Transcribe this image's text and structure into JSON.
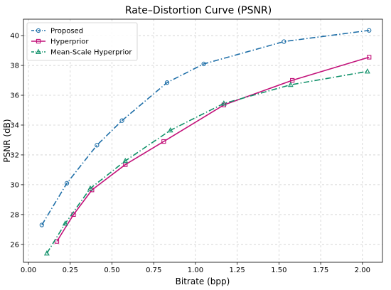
{
  "chart_data": {
    "type": "line",
    "title": "Rate–Distortion Curve (PSNR)",
    "xlabel": "Bitrate (bpp)",
    "ylabel": "PSNR (dB)",
    "xlim": [
      -0.03,
      2.12
    ],
    "ylim": [
      24.8,
      41.1
    ],
    "xticks": [
      0.0,
      0.25,
      0.5,
      0.75,
      1.0,
      1.25,
      1.5,
      1.75,
      2.0
    ],
    "xtick_labels": [
      "0.00",
      "0.25",
      "0.50",
      "0.75",
      "1.00",
      "1.25",
      "1.50",
      "1.75",
      "2.00"
    ],
    "yticks": [
      26,
      28,
      30,
      32,
      34,
      36,
      38,
      40
    ],
    "ytick_labels": [
      "26",
      "28",
      "30",
      "32",
      "34",
      "36",
      "38",
      "40"
    ],
    "grid": true,
    "legend_position": "top-left",
    "series": [
      {
        "name": "Proposed",
        "color": "#1f6fa8",
        "line_style": "dashdot",
        "marker": "circle",
        "x": [
          0.08,
          0.23,
          0.41,
          0.56,
          0.83,
          1.05,
          1.53,
          2.04
        ],
        "y": [
          27.3,
          30.1,
          32.65,
          34.3,
          36.85,
          38.1,
          39.6,
          40.35
        ]
      },
      {
        "name": "Hyperprior",
        "color": "#c2127a",
        "line_style": "solid",
        "marker": "square",
        "x": [
          0.17,
          0.27,
          0.38,
          0.58,
          0.81,
          1.17,
          1.58,
          2.04
        ],
        "y": [
          26.2,
          28.0,
          29.65,
          31.35,
          32.9,
          35.35,
          37.0,
          38.55
        ]
      },
      {
        "name": "Mean-Scale Hyperprior",
        "color": "#11916a",
        "line_style": "dashdot",
        "marker": "triangle",
        "x": [
          0.11,
          0.22,
          0.37,
          0.58,
          0.85,
          1.17,
          1.57,
          2.03
        ],
        "y": [
          25.4,
          27.4,
          29.75,
          31.6,
          33.65,
          35.45,
          36.7,
          37.6
        ]
      }
    ]
  }
}
